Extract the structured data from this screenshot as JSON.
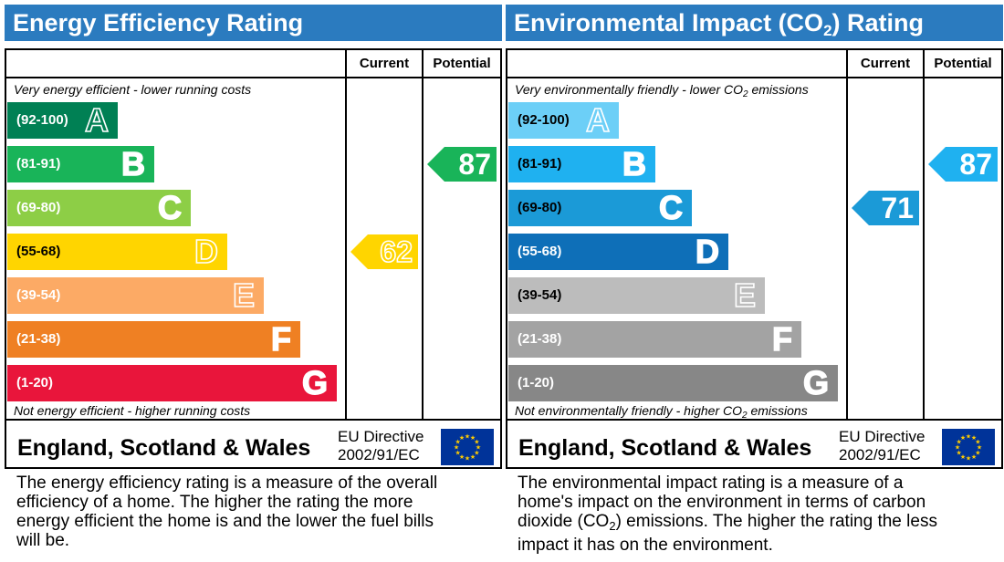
{
  "chart_data": [
    {
      "type": "bar",
      "title": "Energy Efficiency Rating",
      "columns": [
        "Current",
        "Potential"
      ],
      "top_caption": "Very energy efficient - lower running costs",
      "bottom_caption": "Not energy efficient - higher running costs",
      "bands": [
        {
          "range": "(92-100)",
          "letter": "A",
          "color": "#008054"
        },
        {
          "range": "(81-91)",
          "letter": "B",
          "color": "#19b459"
        },
        {
          "range": "(69-80)",
          "letter": "C",
          "color": "#8dce46"
        },
        {
          "range": "(55-68)",
          "letter": "D",
          "color": "#ffd500"
        },
        {
          "range": "(39-54)",
          "letter": "E",
          "color": "#fcaa65"
        },
        {
          "range": "(21-38)",
          "letter": "F",
          "color": "#ef8023"
        },
        {
          "range": "(1-20)",
          "letter": "G",
          "color": "#e9153b"
        }
      ],
      "current": {
        "value": 62,
        "band": "D",
        "color": "#ffd500"
      },
      "potential": {
        "value": 87,
        "band": "B",
        "color": "#19b459"
      },
      "footer": {
        "country": "England, Scotland & Wales",
        "directive_line1": "EU Directive",
        "directive_line2": "2002/91/EC"
      },
      "description": "The energy efficiency rating is a measure of the overall efficiency of a home. The higher the rating the more energy efficient the home is and the lower the fuel bills will be."
    },
    {
      "type": "bar",
      "title_before": "Environmental Impact (CO",
      "title_sub": "2",
      "title_after": ") Rating",
      "columns": [
        "Current",
        "Potential"
      ],
      "top_caption_before": "Very environmentally friendly - lower CO",
      "top_caption_sub": "2",
      "top_caption_after": " emissions",
      "bottom_caption_before": "Not environmentally friendly - higher CO",
      "bottom_caption_sub": "2",
      "bottom_caption_after": " emissions",
      "bands": [
        {
          "range": "(92-100)",
          "letter": "A",
          "color": "#6ccff7"
        },
        {
          "range": "(81-91)",
          "letter": "B",
          "color": "#1fb1f0"
        },
        {
          "range": "(69-80)",
          "letter": "C",
          "color": "#1b9ad7"
        },
        {
          "range": "(55-68)",
          "letter": "D",
          "color": "#0e6fb8"
        },
        {
          "range": "(39-54)",
          "letter": "E",
          "color": "#bcbcbc"
        },
        {
          "range": "(21-38)",
          "letter": "F",
          "color": "#a3a3a3"
        },
        {
          "range": "(1-20)",
          "letter": "G",
          "color": "#878787"
        }
      ],
      "current": {
        "value": 71,
        "band": "C",
        "color": "#1b9ad7"
      },
      "potential": {
        "value": 87,
        "band": "B",
        "color": "#1fb1f0"
      },
      "footer": {
        "country": "England, Scotland & Wales",
        "directive_line1": "EU Directive",
        "directive_line2": "2002/91/EC"
      },
      "description_before": "The environmental impact rating is a measure of a home's impact on the environment in terms of carbon dioxide (CO",
      "description_sub": "2",
      "description_after": ") emissions. The higher the rating the less impact it has on the environment."
    }
  ]
}
